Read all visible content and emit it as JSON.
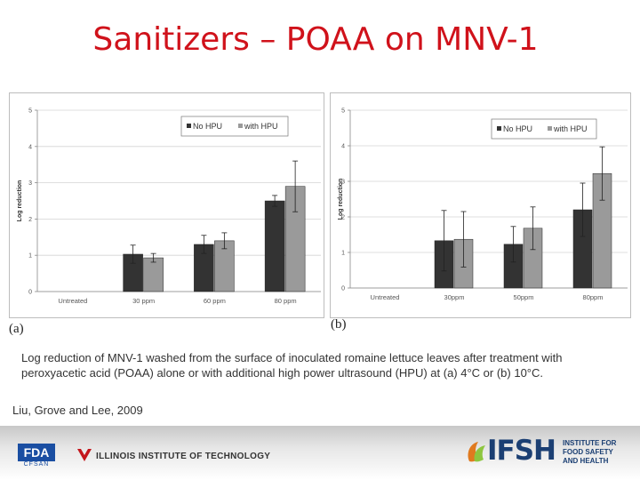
{
  "slide": {
    "title": "Sanitizers – POAA on MNV-1",
    "caption": "Log reduction of MNV-1 washed from the surface of inoculated romaine lettuce leaves after treatment with peroxyacetic acid (POAA) alone or with additional high power ultrasound (HPU) at (a) 4°C or (b) 10°C.",
    "citation": "Liu, Grove and Lee, 2009",
    "panel_a": "(a)",
    "panel_b": "(b)"
  },
  "footer": {
    "fda": "FDA",
    "cfsan": "CFSAN",
    "iit": "ILLINOIS INSTITUTE OF TECHNOLOGY",
    "ifsh": "IFSH",
    "ifsh_sub_1": "INSTITUTE FOR",
    "ifsh_sub_2": "FOOD SAFETY",
    "ifsh_sub_3": "AND HEALTH"
  },
  "chart_data": [
    {
      "type": "bar",
      "panel": "(a)",
      "ylabel": "Log reduction",
      "ylim": [
        0,
        5
      ],
      "yticks": [
        0,
        1,
        2,
        3,
        4,
        5
      ],
      "categories": [
        "Untreated",
        "30 ppm",
        "60 ppm",
        "80 ppm"
      ],
      "legend_position": "top-right",
      "grid": true,
      "series": [
        {
          "name": "No HPU",
          "color": "#333333",
          "values": [
            null,
            1.03,
            1.3,
            2.5
          ],
          "errors": [
            null,
            0.25,
            0.25,
            0.15
          ]
        },
        {
          "name": "with HPU",
          "color": "#9a9a9a",
          "values": [
            null,
            0.93,
            1.4,
            2.9
          ],
          "errors": [
            null,
            0.12,
            0.22,
            0.7
          ]
        }
      ]
    },
    {
      "type": "bar",
      "panel": "(b)",
      "ylabel": "Log reduction",
      "ylim": [
        0,
        5
      ],
      "yticks": [
        0,
        1,
        2,
        3,
        4,
        5
      ],
      "categories": [
        "Untreated",
        "30ppm",
        "50ppm",
        "80ppm"
      ],
      "legend_position": "top-right",
      "grid": true,
      "series": [
        {
          "name": "No HPU",
          "color": "#333333",
          "values": [
            null,
            1.33,
            1.23,
            2.2
          ],
          "errors": [
            null,
            0.85,
            0.5,
            0.75
          ]
        },
        {
          "name": "with HPU",
          "color": "#9a9a9a",
          "values": [
            null,
            1.37,
            1.68,
            3.22
          ],
          "errors": [
            null,
            0.78,
            0.6,
            0.75
          ]
        }
      ]
    }
  ]
}
